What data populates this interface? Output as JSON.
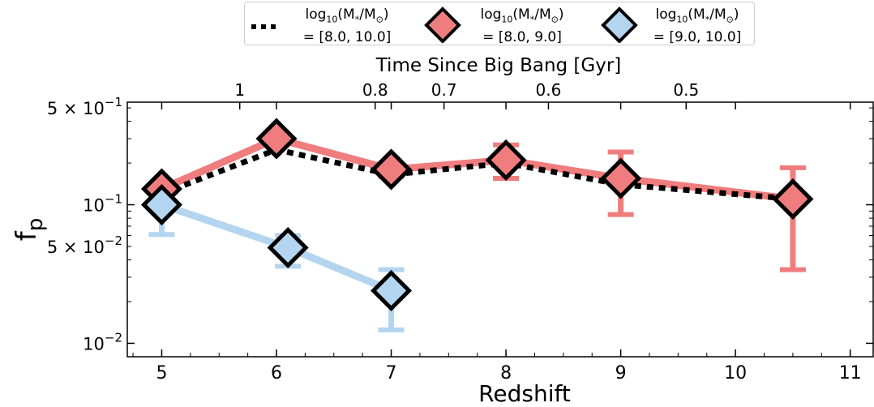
{
  "chart_data": {
    "type": "line",
    "ylabel": "f_p",
    "xlabel": "Redshift",
    "top_axis_label": "Time Since Big Bang [Gyr]",
    "x_range": [
      4.7,
      11.2
    ],
    "y_range_log": [
      0.008,
      0.55
    ],
    "yscale": "log",
    "x_ticks": [
      5,
      6,
      7,
      8,
      9,
      10,
      11
    ],
    "x_tick_labels": [
      "5",
      "6",
      "7",
      "8",
      "9",
      "10",
      "11"
    ],
    "y_ticks": [
      0.5,
      0.1,
      0.05,
      0.01
    ],
    "y_tick_labels": [
      {
        "base": "5 × 10",
        "exp": "−1"
      },
      {
        "base": "10",
        "exp": "−1"
      },
      {
        "base": "5 × 10",
        "exp": "−2"
      },
      {
        "base": "10",
        "exp": "−2"
      }
    ],
    "top_ticks": [
      {
        "label": "1",
        "z": 5.68
      },
      {
        "label": "0.8",
        "z": 6.86
      },
      {
        "label": "0.7",
        "z": 7.46
      },
      {
        "label": "0.6",
        "z": 8.37
      },
      {
        "label": "0.5",
        "z": 9.57
      }
    ],
    "series": [
      {
        "name": "log10(M*/M☉) = [8.0, 10.0]",
        "style": "dotted",
        "color": "#000000",
        "x": [
          5.0,
          6.0,
          7.0,
          8.0,
          9.0,
          10.5
        ],
        "y": [
          0.12,
          0.25,
          0.165,
          0.2,
          0.14,
          0.11
        ]
      },
      {
        "name": "log10(M*/M☉) = [8.0, 9.0]",
        "style": "diamond",
        "color": "#f07d7e",
        "x": [
          5.0,
          6.0,
          7.0,
          8.0,
          9.0,
          10.5
        ],
        "y": [
          0.13,
          0.3,
          0.18,
          0.21,
          0.155,
          0.11
        ],
        "err_low": [
          0.13,
          0.3,
          0.16,
          0.155,
          0.085,
          0.034
        ],
        "err_high": [
          0.13,
          0.3,
          0.19,
          0.27,
          0.24,
          0.185
        ]
      },
      {
        "name": "log10(M*/M☉) = [9.0, 10.0]",
        "style": "diamond",
        "color": "#b4d5ef",
        "x": [
          5.0,
          6.1,
          7.0
        ],
        "y": [
          0.1,
          0.049,
          0.024
        ],
        "err_low": [
          0.061,
          0.036,
          0.0125
        ],
        "err_high": [
          0.1,
          0.06,
          0.034
        ]
      }
    ],
    "legend": {
      "position": "top-center",
      "entries": [
        {
          "line1": "log",
          "sub": "10",
          "rest": "(M",
          "star": "*",
          "mid": "/M",
          "sun": "⊙",
          "close": ")",
          "line2": "= [8.0, 10.0]"
        },
        {
          "line1": "log",
          "sub": "10",
          "rest": "(M",
          "star": "*",
          "mid": "/M",
          "sun": "⊙",
          "close": ")",
          "line2": "= [8.0, 9.0]"
        },
        {
          "line1": "log",
          "sub": "10",
          "rest": "(M",
          "star": "*",
          "mid": "/M",
          "sun": "⊙",
          "close": ")",
          "line2": "= [9.0, 10.0]"
        }
      ]
    }
  }
}
